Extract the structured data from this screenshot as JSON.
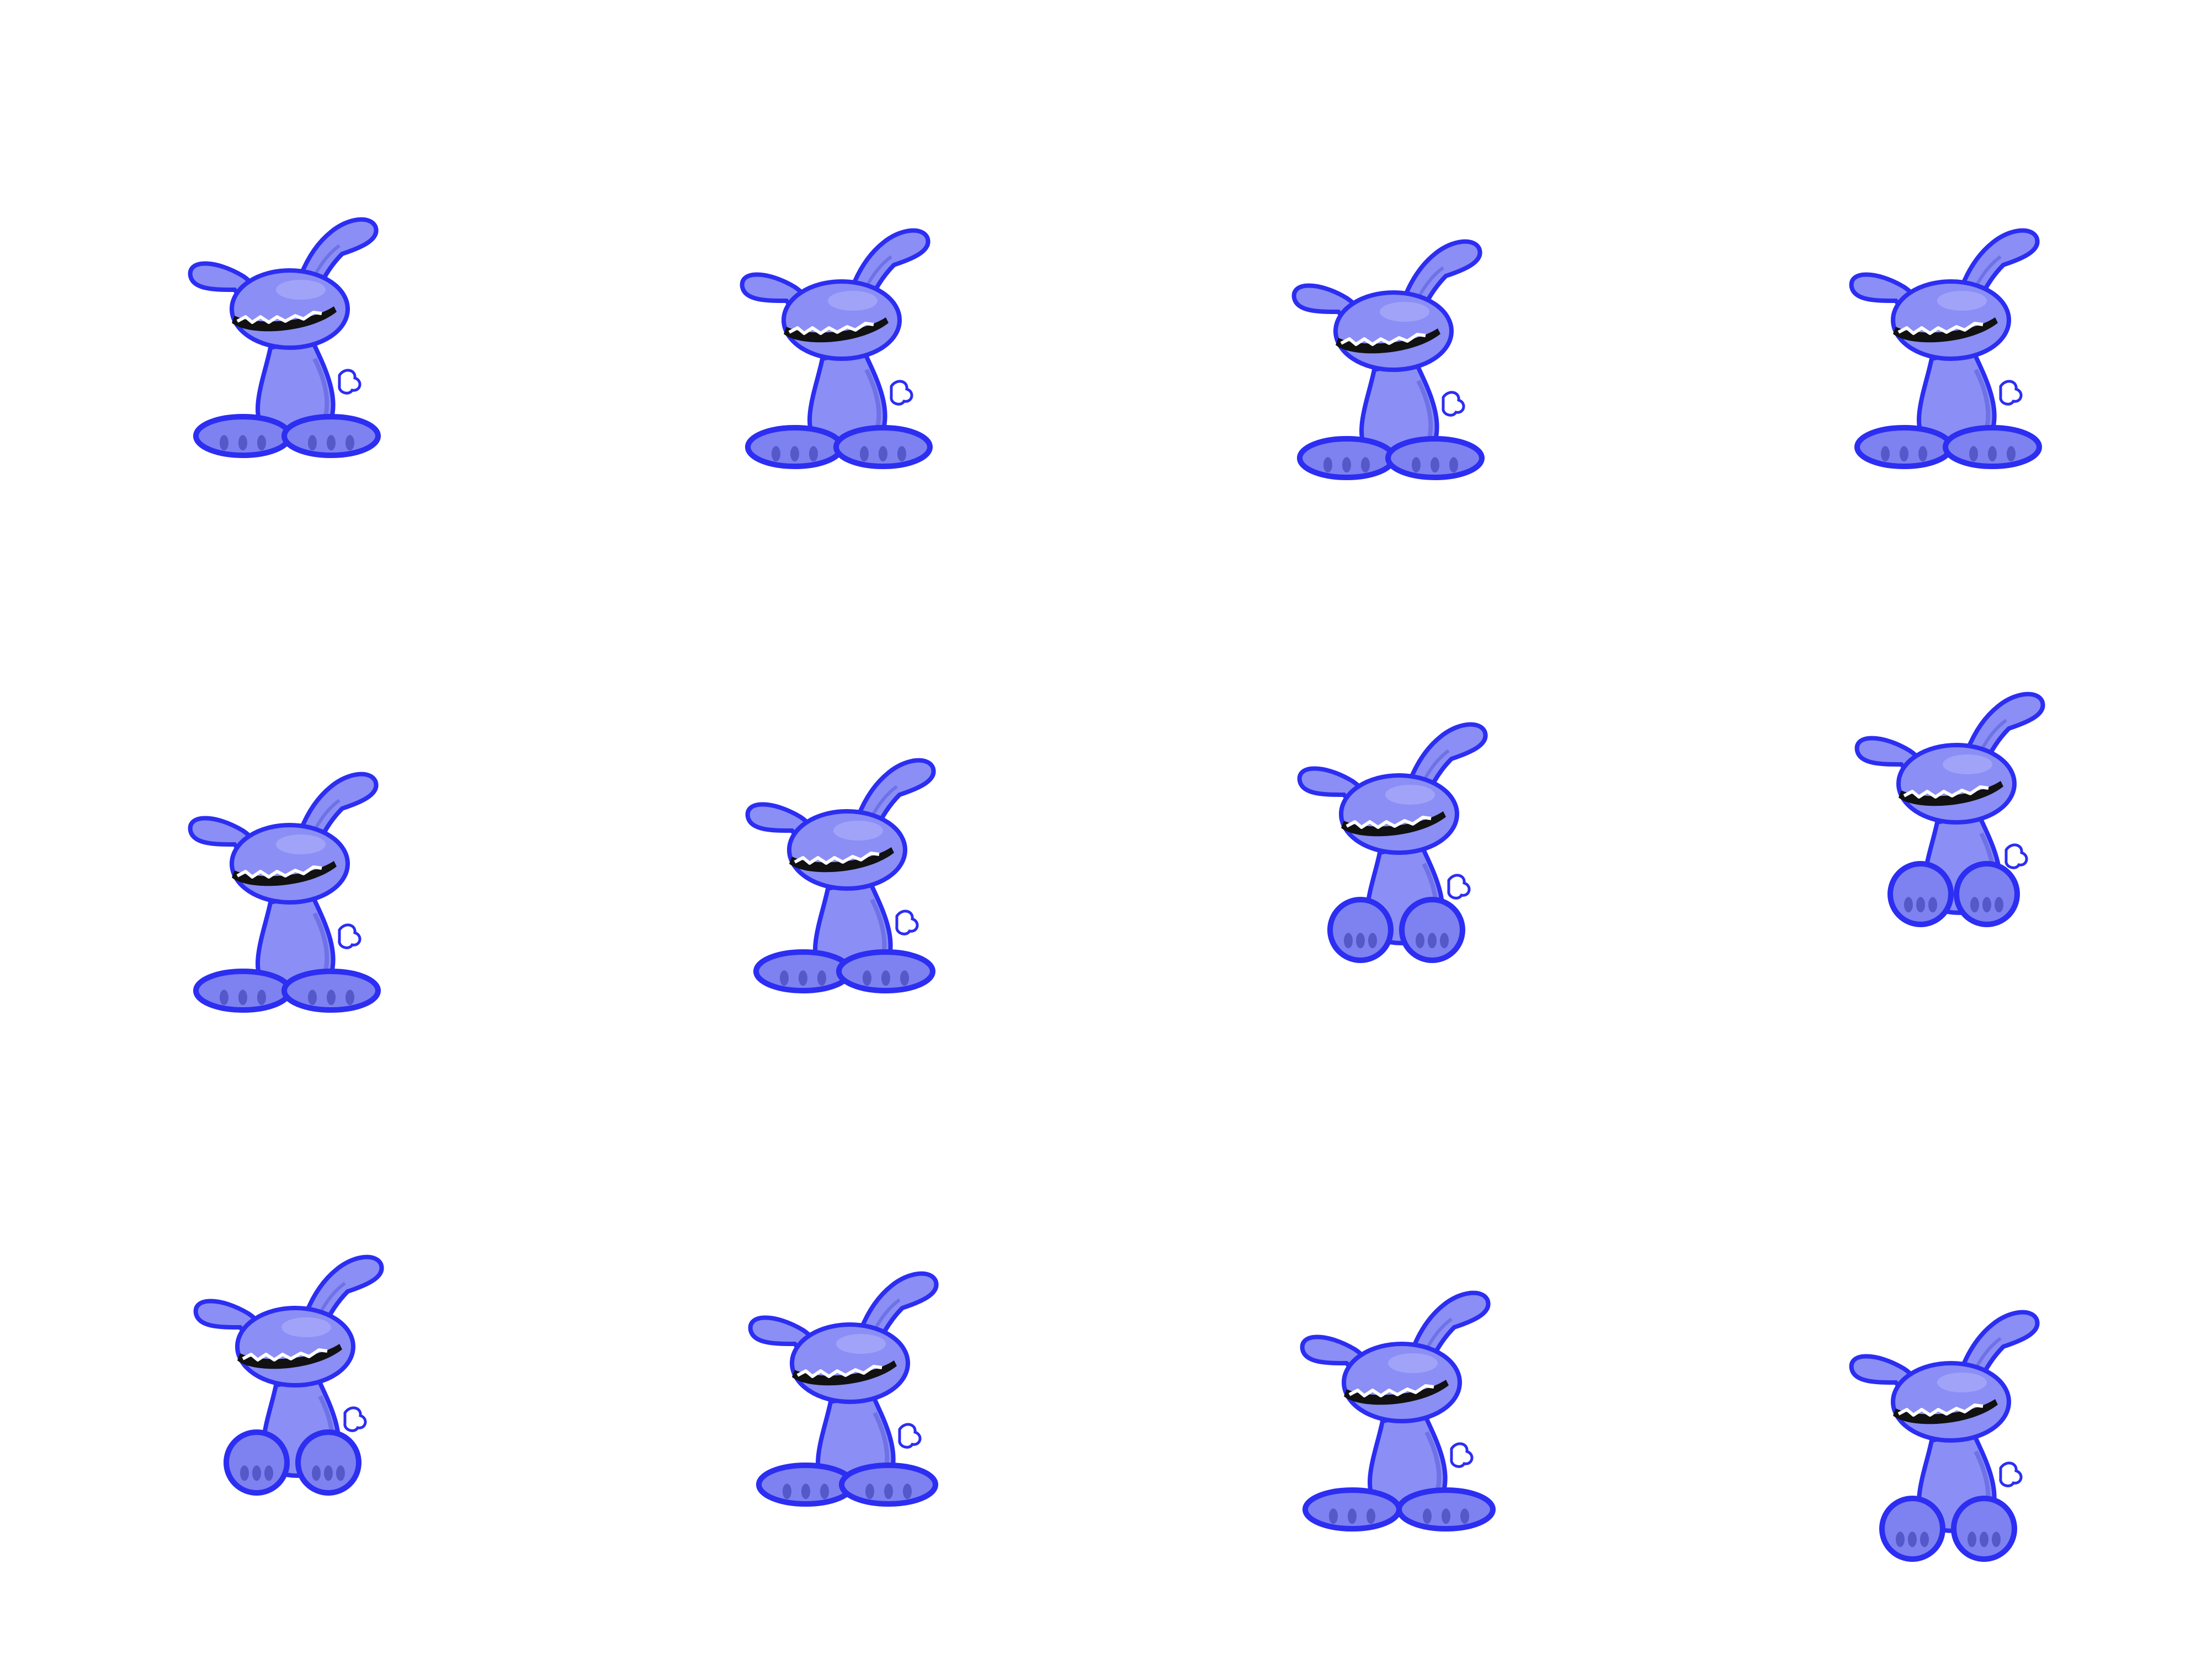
{
  "sprite_sheet": {
    "background": "#ffffff",
    "rows": 3,
    "columns": 4,
    "colors": {
      "body_fill": "#8b8ef5",
      "body_shade": "#6f72e6",
      "outline": "#2c2ef2",
      "foot_fill": "#7e81f0",
      "foot_dark": "#5558c8",
      "mouth": "#111111",
      "teeth": "#ffffff"
    },
    "frames": [
      {
        "row": 1,
        "col": 1,
        "pose": "sitting"
      },
      {
        "row": 1,
        "col": 2,
        "pose": "sitting"
      },
      {
        "row": 1,
        "col": 3,
        "pose": "sitting"
      },
      {
        "row": 1,
        "col": 4,
        "pose": "sitting"
      },
      {
        "row": 2,
        "col": 1,
        "pose": "sitting"
      },
      {
        "row": 2,
        "col": 2,
        "pose": "rising"
      },
      {
        "row": 2,
        "col": 3,
        "pose": "standing"
      },
      {
        "row": 2,
        "col": 4,
        "pose": "hopping"
      },
      {
        "row": 3,
        "col": 1,
        "pose": "standing"
      },
      {
        "row": 3,
        "col": 2,
        "pose": "rising"
      },
      {
        "row": 3,
        "col": 3,
        "pose": "landing"
      },
      {
        "row": 3,
        "col": 4,
        "pose": "crouching"
      }
    ]
  }
}
